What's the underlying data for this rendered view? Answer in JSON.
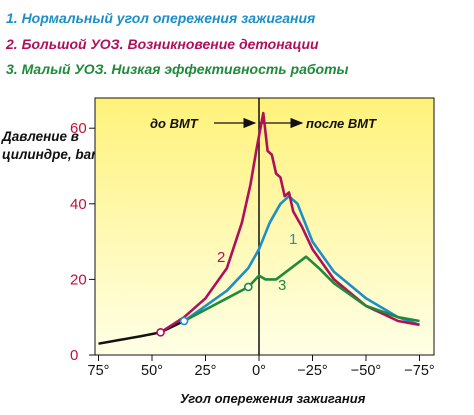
{
  "legend": {
    "item1": "1. Нормальный угол опережения зажигания",
    "item2": "2. Большой УОЗ. Возникновение детонации",
    "item3": "3. Малый УОЗ. Низкая эффективность работы"
  },
  "chart_data": {
    "type": "line",
    "ylabel": "Давление в цилиндре, bar",
    "xlabel": "Угол опережения зажигания",
    "ylim": [
      0,
      70
    ],
    "xlim": [
      75,
      -80
    ],
    "y_ticks": [
      0,
      20,
      40,
      60
    ],
    "x_ticks": [
      75,
      50,
      25,
      0,
      -25,
      -50,
      -75
    ],
    "x_tick_labels": [
      "75°",
      "50°",
      "25°",
      "0°",
      "−25°",
      "−50°",
      "−75°"
    ],
    "annotations": {
      "before": "до ВМТ",
      "after": "после ВМТ"
    },
    "colors": {
      "curve1": "#1c8fc9",
      "curve2": "#b0105a",
      "curve3": "#1f8a3a",
      "compression": "#111111",
      "background_top": "#fff27a",
      "background_bottom": "#ffffe6"
    },
    "compression": {
      "x": [
        75,
        65,
        55,
        46,
        35
      ],
      "y": [
        3,
        4,
        5,
        6,
        9
      ]
    },
    "series": [
      {
        "label": "1",
        "color": "#1c8fc9",
        "x": [
          35,
          25,
          15,
          5,
          0,
          -5,
          -10,
          -14,
          -18,
          -25,
          -35,
          -50,
          -65,
          -75
        ],
        "y": [
          9,
          13,
          17,
          23,
          28,
          35,
          40,
          42,
          40,
          30,
          22,
          15,
          10,
          8
        ]
      },
      {
        "label": "2",
        "color": "#b0105a",
        "x": [
          46,
          35,
          25,
          15,
          8,
          4,
          1,
          -2,
          -4,
          -6,
          -8,
          -10,
          -12,
          -14,
          -16,
          -20,
          -25,
          -35,
          -50,
          -65,
          -75
        ],
        "y": [
          6,
          10,
          15,
          23,
          35,
          45,
          55,
          64,
          54,
          53,
          48,
          47,
          42,
          43,
          38,
          34,
          28,
          20,
          13,
          9,
          8
        ]
      },
      {
        "label": "3",
        "color": "#1f8a3a",
        "x": [
          35,
          25,
          15,
          5,
          0,
          -3,
          -8,
          -15,
          -22,
          -28,
          -35,
          -50,
          -65,
          -75
        ],
        "y": [
          9,
          12,
          15,
          18,
          21,
          20,
          20,
          23,
          26,
          23,
          19,
          13,
          10,
          9
        ]
      }
    ]
  }
}
